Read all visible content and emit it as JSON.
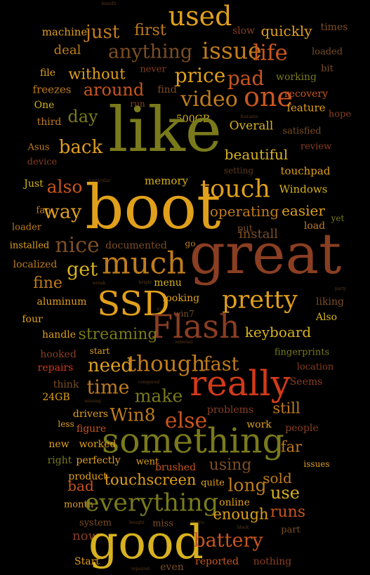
{
  "palette": {
    "olive": "#7a7a1c",
    "gold": "#e0a01c",
    "rust": "#8a3e22",
    "orange": "#c8561e",
    "red": "#d23a1a",
    "brown": "#7c4e24",
    "amber": "#c07c1c",
    "yellow": "#d8b21e",
    "dim": "#5c3a1a"
  },
  "words": [
    {
      "text": "benefit",
      "w": 0.4,
      "c": "dim"
    },
    {
      "text": "machine",
      "w": 1.5,
      "c": "gold"
    },
    {
      "text": "just",
      "w": 3,
      "c": "amber"
    },
    {
      "text": "first",
      "w": 2.6,
      "c": "amber"
    },
    {
      "text": "used",
      "w": 4,
      "c": "gold"
    },
    {
      "text": "slow",
      "w": 1.3,
      "c": "rust"
    },
    {
      "text": "quickly",
      "w": 2.6,
      "c": "gold"
    },
    {
      "text": "times",
      "w": 1.3,
      "c": "brown"
    },
    {
      "text": "deal",
      "w": 2.2,
      "c": "amber"
    },
    {
      "text": "anything",
      "w": 3.4,
      "c": "brown"
    },
    {
      "text": "issue",
      "w": 4.2,
      "c": "amber"
    },
    {
      "text": "life",
      "w": 3.8,
      "c": "orange"
    },
    {
      "text": "loaded",
      "w": 1.3,
      "c": "brown"
    },
    {
      "text": "file",
      "w": 1.3,
      "c": "gold"
    },
    {
      "text": "without",
      "w": 2.5,
      "c": "gold"
    },
    {
      "text": "never",
      "w": 1.3,
      "c": "rust"
    },
    {
      "text": "price",
      "w": 3.6,
      "c": "gold"
    },
    {
      "text": "pad",
      "w": 3.2,
      "c": "orange"
    },
    {
      "text": "working",
      "w": 1.5,
      "c": "olive"
    },
    {
      "text": "bit",
      "w": 1.3,
      "c": "brown"
    },
    {
      "text": "freezes",
      "w": 1.5,
      "c": "amber"
    },
    {
      "text": "around",
      "w": 3.2,
      "c": "orange"
    },
    {
      "text": "find",
      "w": 1.5,
      "c": "brown"
    },
    {
      "text": "video",
      "w": 3.6,
      "c": "amber"
    },
    {
      "text": "one",
      "w": 4.4,
      "c": "orange"
    },
    {
      "text": "recovery",
      "w": 1.5,
      "c": "orange"
    },
    {
      "text": "run",
      "w": 1.2,
      "c": "rust"
    },
    {
      "text": "One",
      "w": 1.5,
      "c": "yellow"
    },
    {
      "text": "day",
      "w": 3,
      "c": "olive"
    },
    {
      "text": "feature",
      "w": 1.6,
      "c": "gold"
    },
    {
      "text": "hope",
      "w": 1.3,
      "c": "rust"
    },
    {
      "text": "third",
      "w": 1.5,
      "c": "amber"
    },
    {
      "text": "500GB",
      "w": 1.5,
      "c": "yellow"
    },
    {
      "text": "features",
      "w": 0.4,
      "c": "dim"
    },
    {
      "text": "Overall",
      "w": 2.2,
      "c": "yellow"
    },
    {
      "text": "satisfied",
      "w": 1.4,
      "c": "brown"
    },
    {
      "text": "like",
      "w": 11,
      "c": "olive"
    },
    {
      "text": "Asus",
      "w": 1.4,
      "c": "amber"
    },
    {
      "text": "back",
      "w": 3.2,
      "c": "gold"
    },
    {
      "text": "beautiful",
      "w": 2.4,
      "c": "yellow"
    },
    {
      "text": "review",
      "w": 1.4,
      "c": "rust"
    },
    {
      "text": "device",
      "w": 1.4,
      "c": "rust"
    },
    {
      "text": "setting",
      "w": 1.3,
      "c": "dim"
    },
    {
      "text": "touchpad",
      "w": 1.5,
      "c": "gold"
    },
    {
      "text": "Just",
      "w": 1.5,
      "c": "yellow"
    },
    {
      "text": "also",
      "w": 3,
      "c": "orange"
    },
    {
      "text": "particular",
      "w": 0.4,
      "c": "dim"
    },
    {
      "text": "memory",
      "w": 1.7,
      "c": "yellow"
    },
    {
      "text": "touch",
      "w": 4.2,
      "c": "gold"
    },
    {
      "text": "Windows",
      "w": 1.6,
      "c": "yellow"
    },
    {
      "text": "boot",
      "w": 11,
      "c": "gold"
    },
    {
      "text": "fan",
      "w": 1.4,
      "c": "amber"
    },
    {
      "text": "way",
      "w": 3.4,
      "c": "gold"
    },
    {
      "text": "operating",
      "w": 2.5,
      "c": "amber"
    },
    {
      "text": "easier",
      "w": 2.4,
      "c": "gold"
    },
    {
      "text": "yet",
      "w": 1.3,
      "c": "olive"
    },
    {
      "text": "loader",
      "w": 1.4,
      "c": "amber"
    },
    {
      "text": "put",
      "w": 1.4,
      "c": "brown"
    },
    {
      "text": "load",
      "w": 1.5,
      "c": "amber"
    },
    {
      "text": "install",
      "w": 2.2,
      "c": "brown"
    },
    {
      "text": "installed",
      "w": 1.5,
      "c": "gold"
    },
    {
      "text": "nice",
      "w": 3.6,
      "c": "brown"
    },
    {
      "text": "documented",
      "w": 1.6,
      "c": "brown"
    },
    {
      "text": "go",
      "w": 1.3,
      "c": "amber"
    },
    {
      "text": "great",
      "w": 10,
      "c": "rust"
    },
    {
      "text": "localized",
      "w": 1.5,
      "c": "amber"
    },
    {
      "text": "get",
      "w": 3.4,
      "c": "yellow"
    },
    {
      "text": "much",
      "w": 5.5,
      "c": "amber"
    },
    {
      "text": "wreak",
      "w": 0.4,
      "c": "dim"
    },
    {
      "text": "bright",
      "w": 0.4,
      "c": "dim"
    },
    {
      "text": "menu",
      "w": 1.6,
      "c": "yellow"
    },
    {
      "text": "fine",
      "w": 2.6,
      "c": "amber"
    },
    {
      "text": "looking",
      "w": 1.6,
      "c": "gold"
    },
    {
      "text": "pretty",
      "w": 4.2,
      "c": "gold"
    },
    {
      "text": "party",
      "w": 0.4,
      "c": "dim"
    },
    {
      "text": "Fast",
      "w": 0.4,
      "c": "dim"
    },
    {
      "text": "liking",
      "w": 1.5,
      "c": "brown"
    },
    {
      "text": "aluminum",
      "w": 1.5,
      "c": "gold"
    },
    {
      "text": "SSD",
      "w": 6,
      "c": "gold"
    },
    {
      "text": "win7",
      "w": 1.3,
      "c": "brown"
    },
    {
      "text": "four",
      "w": 1.4,
      "c": "gold"
    },
    {
      "text": "Also",
      "w": 1.4,
      "c": "yellow"
    },
    {
      "text": "handle",
      "w": 1.5,
      "c": "gold"
    },
    {
      "text": "Flash",
      "w": 6,
      "c": "rust"
    },
    {
      "text": "keyboard",
      "w": 2.4,
      "c": "yellow"
    },
    {
      "text": "streaming",
      "w": 2.6,
      "c": "olive"
    },
    {
      "text": "external",
      "w": 0.4,
      "c": "dim"
    },
    {
      "text": "hooked",
      "w": 1.5,
      "c": "rust"
    },
    {
      "text": "start",
      "w": 1.3,
      "c": "gold"
    },
    {
      "text": "fingerprints",
      "w": 1.5,
      "c": "olive"
    },
    {
      "text": "need",
      "w": 3.2,
      "c": "gold"
    },
    {
      "text": "though",
      "w": 3.8,
      "c": "amber"
    },
    {
      "text": "fast",
      "w": 3.4,
      "c": "amber"
    },
    {
      "text": "repairs",
      "w": 1.5,
      "c": "red"
    },
    {
      "text": "location",
      "w": 1.5,
      "c": "rust"
    },
    {
      "text": "think",
      "w": 1.5,
      "c": "brown"
    },
    {
      "text": "time",
      "w": 3.4,
      "c": "amber"
    },
    {
      "text": "really",
      "w": 6,
      "c": "red"
    },
    {
      "text": "compared",
      "w": 0.4,
      "c": "dim"
    },
    {
      "text": "Seems",
      "w": 1.5,
      "c": "rust"
    },
    {
      "text": "24GB",
      "w": 1.5,
      "c": "gold"
    },
    {
      "text": "make",
      "w": 3,
      "c": "olive"
    },
    {
      "text": "missing",
      "w": 0.4,
      "c": "dim"
    },
    {
      "text": "drivers",
      "w": 1.5,
      "c": "gold"
    },
    {
      "text": "else",
      "w": 3.6,
      "c": "orange"
    },
    {
      "text": "problems",
      "w": 1.6,
      "c": "rust"
    },
    {
      "text": "still",
      "w": 2.6,
      "c": "amber"
    },
    {
      "text": "Win8",
      "w": 3,
      "c": "amber"
    },
    {
      "text": "less",
      "w": 1.3,
      "c": "gold"
    },
    {
      "text": "figure",
      "w": 1.6,
      "c": "orange"
    },
    {
      "text": "work",
      "w": 1.6,
      "c": "gold"
    },
    {
      "text": "people",
      "w": 1.5,
      "c": "rust"
    },
    {
      "text": "something",
      "w": 6,
      "c": "olive"
    },
    {
      "text": "new",
      "w": 1.4,
      "c": "gold"
    },
    {
      "text": "worked",
      "w": 1.6,
      "c": "gold"
    },
    {
      "text": "far",
      "w": 2.6,
      "c": "amber"
    },
    {
      "text": "right",
      "w": 1.6,
      "c": "olive"
    },
    {
      "text": "perfectly",
      "w": 1.6,
      "c": "gold"
    },
    {
      "text": "went",
      "w": 1.5,
      "c": "gold"
    },
    {
      "text": "using",
      "w": 2.6,
      "c": "brown"
    },
    {
      "text": "issues",
      "w": 1.4,
      "c": "gold"
    },
    {
      "text": "product",
      "w": 1.6,
      "c": "gold"
    },
    {
      "text": "brushed",
      "w": 1.6,
      "c": "orange"
    },
    {
      "text": "sold",
      "w": 2.4,
      "c": "amber"
    },
    {
      "text": "bad",
      "w": 2.4,
      "c": "orange"
    },
    {
      "text": "touchscreen",
      "w": 2.6,
      "c": "gold"
    },
    {
      "text": "quite",
      "w": 1.5,
      "c": "gold"
    },
    {
      "text": "long",
      "w": 3,
      "c": "amber"
    },
    {
      "text": "use",
      "w": 3,
      "c": "yellow"
    },
    {
      "text": "month",
      "w": 1.5,
      "c": "gold"
    },
    {
      "text": "everything",
      "w": 4.2,
      "c": "olive"
    },
    {
      "text": "online",
      "w": 1.6,
      "c": "gold"
    },
    {
      "text": "enough",
      "w": 2.6,
      "c": "gold"
    },
    {
      "text": "runs",
      "w": 2.6,
      "c": "orange"
    },
    {
      "text": "system",
      "w": 1.5,
      "c": "brown"
    },
    {
      "text": "bought",
      "w": 0.4,
      "c": "dim"
    },
    {
      "text": "miss",
      "w": 1.5,
      "c": "brown"
    },
    {
      "text": "Metro",
      "w": 0.4,
      "c": "dim"
    },
    {
      "text": "black",
      "w": 0.4,
      "c": "dim"
    },
    {
      "text": "part",
      "w": 1.5,
      "c": "brown"
    },
    {
      "text": "now",
      "w": 2.2,
      "c": "rust"
    },
    {
      "text": "good",
      "w": 8,
      "c": "yellow"
    },
    {
      "text": "battery",
      "w": 3.2,
      "c": "orange"
    },
    {
      "text": "Start",
      "w": 1.4,
      "c": "gold"
    },
    {
      "text": "repaired",
      "w": 0.4,
      "c": "dim"
    },
    {
      "text": "even",
      "w": 1.6,
      "c": "brown"
    },
    {
      "text": "reported",
      "w": 1.6,
      "c": "orange"
    },
    {
      "text": "nothing",
      "w": 1.6,
      "c": "rust"
    }
  ]
}
